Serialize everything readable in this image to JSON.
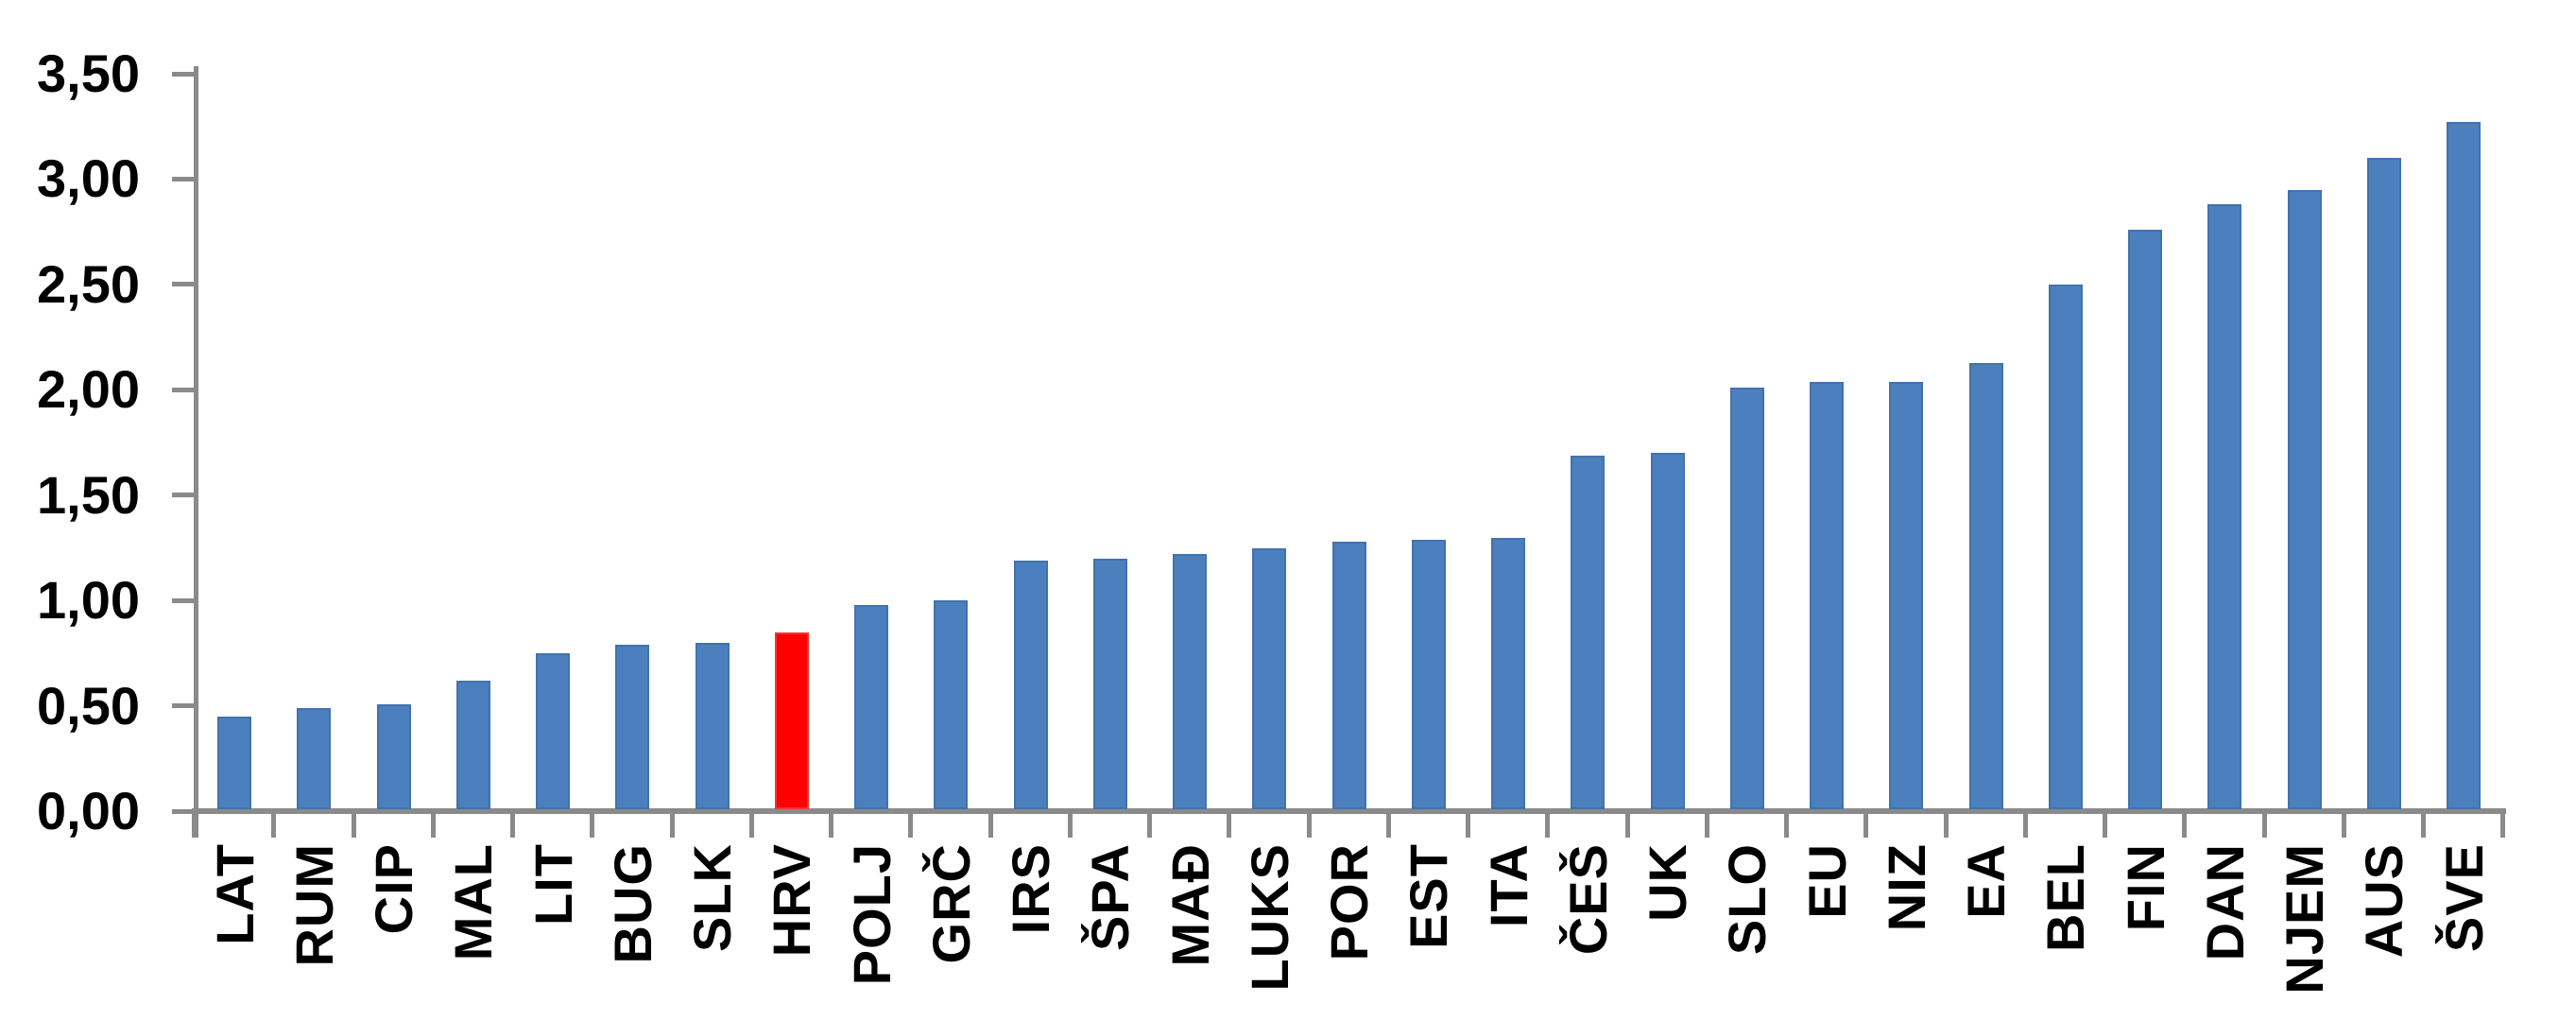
{
  "chart_data": {
    "type": "bar",
    "title": "",
    "categories": [
      "LAT",
      "RUM",
      "CIP",
      "MAL",
      "LIT",
      "BUG",
      "SLK",
      "HRV",
      "POLJ",
      "GRČ",
      "IRS",
      "ŠPA",
      "MAĐ",
      "LUKS",
      "POR",
      "EST",
      "ITA",
      "ČEŠ",
      "UK",
      "SLO",
      "EU",
      "NIZ",
      "EA",
      "BEL",
      "FIN",
      "DAN",
      "NJEM",
      "AUS",
      "ŠVE"
    ],
    "values": [
      0.44,
      0.48,
      0.5,
      0.61,
      0.74,
      0.78,
      0.79,
      0.84,
      0.97,
      0.99,
      1.18,
      1.19,
      1.21,
      1.24,
      1.27,
      1.28,
      1.29,
      1.68,
      1.69,
      2.0,
      2.03,
      2.03,
      2.12,
      2.49,
      2.75,
      2.87,
      2.94,
      3.09,
      3.26
    ],
    "highlight_category": "HRV",
    "highlight_index": 7,
    "bar_color": "#4c7fbd",
    "bar_border_color": "#4173ad",
    "highlight_color": "#fe0000",
    "highlight_border_color": "#f03535",
    "axis_color": "#8a8a8a",
    "text_color": "#000000",
    "ylim": [
      0,
      3.5
    ],
    "ytick_step": 0.5,
    "ytick_labels": [
      "0,00",
      "0,50",
      "1,00",
      "1,50",
      "2,00",
      "2,50",
      "3,00",
      "3,50"
    ],
    "grid": false,
    "legend": false,
    "x_labels_rotation_deg": -90,
    "x_labels_anchor": "top"
  }
}
